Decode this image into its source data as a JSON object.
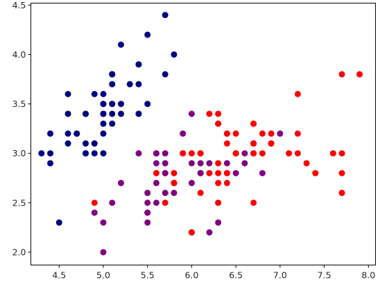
{
  "chart_data": {
    "type": "scatter",
    "title": "",
    "xlabel": "",
    "ylabel": "",
    "xlim": [
      4.18,
      8.08
    ],
    "ylim": [
      1.87,
      4.52
    ],
    "grid": false,
    "x_ticks": [
      4.5,
      5.0,
      5.5,
      6.0,
      6.5,
      7.0,
      7.5,
      8.0
    ],
    "y_ticks": [
      2.0,
      2.5,
      3.0,
      3.5,
      4.0,
      4.5
    ],
    "x_tick_labels": [
      "4.5",
      "5.0",
      "5.5",
      "6.0",
      "6.5",
      "7.0",
      "7.5",
      "8.0"
    ],
    "y_tick_labels": [
      "2.0",
      "2.5",
      "3.0",
      "3.5",
      "4.0",
      "4.5"
    ],
    "series": [
      {
        "color": "#000080",
        "points": [
          [
            5.1,
            3.5
          ],
          [
            4.9,
            3.0
          ],
          [
            4.7,
            3.2
          ],
          [
            4.6,
            3.1
          ],
          [
            5.0,
            3.6
          ],
          [
            5.4,
            3.9
          ],
          [
            4.6,
            3.4
          ],
          [
            5.0,
            3.4
          ],
          [
            4.4,
            2.9
          ],
          [
            4.9,
            3.1
          ],
          [
            5.4,
            3.7
          ],
          [
            4.8,
            3.4
          ],
          [
            4.8,
            3.0
          ],
          [
            4.3,
            3.0
          ],
          [
            5.8,
            4.0
          ],
          [
            5.7,
            4.4
          ],
          [
            5.4,
            3.9
          ],
          [
            5.1,
            3.5
          ],
          [
            5.7,
            3.8
          ],
          [
            5.1,
            3.8
          ],
          [
            5.4,
            3.4
          ],
          [
            5.1,
            3.7
          ],
          [
            4.6,
            3.6
          ],
          [
            5.1,
            3.3
          ],
          [
            4.8,
            3.4
          ],
          [
            5.0,
            3.0
          ],
          [
            5.0,
            3.4
          ],
          [
            5.2,
            3.5
          ],
          [
            5.2,
            3.4
          ],
          [
            4.7,
            3.2
          ],
          [
            4.8,
            3.1
          ],
          [
            5.4,
            3.4
          ],
          [
            5.2,
            4.1
          ],
          [
            5.5,
            4.2
          ],
          [
            4.9,
            3.1
          ],
          [
            5.0,
            3.2
          ],
          [
            5.5,
            3.5
          ],
          [
            4.9,
            3.6
          ],
          [
            4.4,
            3.0
          ],
          [
            5.1,
            3.4
          ],
          [
            5.0,
            3.5
          ],
          [
            4.5,
            2.3
          ],
          [
            4.4,
            3.2
          ],
          [
            5.0,
            3.5
          ],
          [
            5.1,
            3.8
          ],
          [
            4.8,
            3.0
          ],
          [
            5.1,
            3.8
          ],
          [
            4.6,
            3.2
          ],
          [
            5.3,
            3.7
          ],
          [
            5.0,
            3.3
          ]
        ]
      },
      {
        "color": "#800080",
        "points": [
          [
            7.0,
            3.2
          ],
          [
            6.4,
            3.2
          ],
          [
            6.9,
            3.1
          ],
          [
            5.5,
            2.3
          ],
          [
            6.5,
            2.8
          ],
          [
            5.7,
            2.8
          ],
          [
            6.3,
            3.3
          ],
          [
            4.9,
            2.4
          ],
          [
            6.6,
            2.9
          ],
          [
            5.2,
            2.7
          ],
          [
            5.0,
            2.0
          ],
          [
            5.9,
            3.0
          ],
          [
            6.0,
            2.2
          ],
          [
            6.1,
            2.9
          ],
          [
            5.6,
            2.9
          ],
          [
            6.7,
            3.1
          ],
          [
            5.6,
            3.0
          ],
          [
            5.8,
            2.7
          ],
          [
            6.2,
            2.2
          ],
          [
            5.6,
            2.5
          ],
          [
            5.9,
            3.2
          ],
          [
            6.1,
            2.8
          ],
          [
            6.3,
            2.5
          ],
          [
            6.1,
            2.8
          ],
          [
            6.4,
            2.9
          ],
          [
            6.6,
            3.0
          ],
          [
            6.8,
            2.8
          ],
          [
            6.7,
            3.0
          ],
          [
            6.0,
            2.9
          ],
          [
            5.7,
            2.6
          ],
          [
            5.5,
            2.4
          ],
          [
            5.5,
            2.4
          ],
          [
            5.8,
            2.7
          ],
          [
            6.0,
            2.7
          ],
          [
            5.4,
            3.0
          ],
          [
            6.0,
            3.4
          ],
          [
            6.7,
            3.1
          ],
          [
            6.3,
            2.3
          ],
          [
            5.6,
            3.0
          ],
          [
            5.5,
            2.5
          ],
          [
            5.5,
            2.6
          ],
          [
            6.1,
            3.0
          ],
          [
            5.8,
            2.6
          ],
          [
            5.0,
            2.3
          ],
          [
            5.6,
            2.7
          ],
          [
            5.7,
            3.0
          ],
          [
            5.7,
            2.9
          ],
          [
            6.2,
            2.9
          ],
          [
            5.1,
            2.5
          ],
          [
            5.7,
            2.8
          ]
        ]
      },
      {
        "color": "#ff0000",
        "points": [
          [
            6.3,
            3.3
          ],
          [
            5.8,
            2.7
          ],
          [
            7.1,
            3.0
          ],
          [
            6.3,
            2.9
          ],
          [
            6.5,
            3.0
          ],
          [
            7.6,
            3.0
          ],
          [
            4.9,
            2.5
          ],
          [
            7.3,
            2.9
          ],
          [
            6.7,
            2.5
          ],
          [
            7.2,
            3.6
          ],
          [
            6.5,
            3.2
          ],
          [
            6.4,
            2.7
          ],
          [
            6.8,
            3.0
          ],
          [
            5.7,
            2.5
          ],
          [
            5.8,
            2.8
          ],
          [
            6.4,
            3.2
          ],
          [
            6.5,
            3.0
          ],
          [
            7.7,
            3.8
          ],
          [
            7.7,
            2.6
          ],
          [
            6.0,
            2.2
          ],
          [
            6.9,
            3.2
          ],
          [
            5.6,
            2.8
          ],
          [
            7.7,
            2.8
          ],
          [
            6.3,
            2.7
          ],
          [
            6.7,
            3.3
          ],
          [
            7.2,
            3.2
          ],
          [
            6.2,
            2.8
          ],
          [
            6.1,
            3.0
          ],
          [
            6.4,
            2.8
          ],
          [
            7.2,
            3.0
          ],
          [
            7.4,
            2.8
          ],
          [
            7.9,
            3.8
          ],
          [
            6.4,
            2.8
          ],
          [
            6.3,
            2.8
          ],
          [
            6.1,
            2.6
          ],
          [
            7.7,
            3.0
          ],
          [
            6.3,
            3.4
          ],
          [
            6.4,
            3.1
          ],
          [
            6.0,
            3.0
          ],
          [
            6.9,
            3.1
          ],
          [
            6.7,
            3.1
          ],
          [
            6.9,
            3.1
          ],
          [
            5.8,
            2.7
          ],
          [
            6.8,
            3.2
          ],
          [
            6.7,
            3.3
          ],
          [
            6.7,
            3.0
          ],
          [
            6.3,
            2.5
          ],
          [
            6.5,
            3.0
          ],
          [
            6.2,
            3.4
          ],
          [
            5.9,
            3.0
          ]
        ]
      }
    ]
  }
}
